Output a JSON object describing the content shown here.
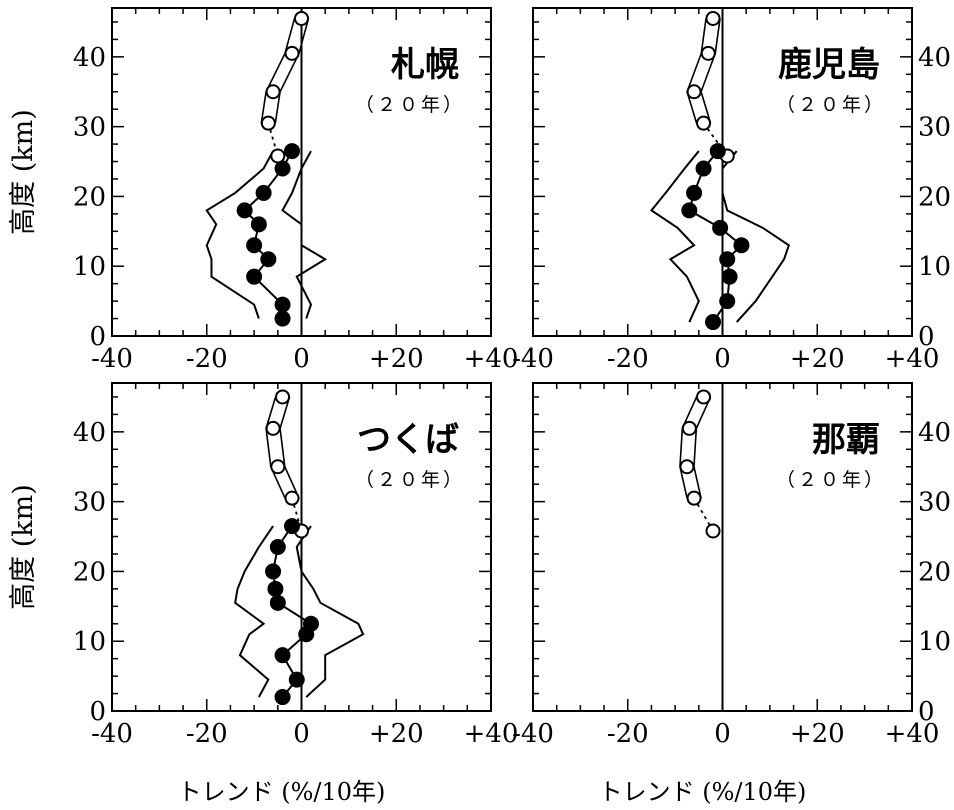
{
  "chart_data": [
    {
      "type": "line",
      "title": "札幌",
      "subtitle": "（２０年）",
      "xlabel": "トレンド (%/10年)",
      "ylabel": "高度 (km)",
      "xlim": [
        -40,
        40
      ],
      "ylim": [
        0,
        47
      ],
      "x_ticks": [
        "-40",
        "-20",
        "0",
        "+20",
        "+40"
      ],
      "y_ticks": [
        "0",
        "10",
        "20",
        "30",
        "40"
      ],
      "series": [
        {
          "marker": "open-circle",
          "x": [
            0,
            -2,
            -6,
            -7,
            -5
          ],
          "y": [
            45.5,
            40.5,
            35,
            30.5,
            25.8
          ]
        },
        {
          "marker": "filled-circle",
          "x": [
            -2,
            -4,
            -8,
            -12,
            -9,
            -10,
            -7,
            -10,
            -4,
            -4
          ],
          "y": [
            26.5,
            24,
            20.5,
            18,
            16,
            13,
            11,
            8.5,
            4.5,
            2.5
          ]
        }
      ]
    },
    {
      "type": "line",
      "title": "鹿児島",
      "subtitle": "（２０年）",
      "xlabel": "トレンド (%/10年)",
      "ylabel": "",
      "xlim": [
        -40,
        40
      ],
      "ylim": [
        0,
        47
      ],
      "x_ticks": [
        "-40",
        "-20",
        "0",
        "+20",
        "+40"
      ],
      "y_ticks": [
        "0",
        "10",
        "20",
        "30",
        "40"
      ],
      "series": [
        {
          "marker": "open-circle",
          "x": [
            -2,
            -3,
            -6,
            -4,
            1
          ],
          "y": [
            45.5,
            40.5,
            35,
            30.5,
            25.8
          ]
        },
        {
          "marker": "filled-circle",
          "x": [
            -1,
            -4,
            -6,
            -7,
            -0.5,
            4,
            1,
            1.5,
            1,
            -2
          ],
          "y": [
            26.5,
            24,
            20.5,
            18,
            15.5,
            13,
            11,
            8.5,
            5,
            2
          ]
        }
      ]
    },
    {
      "type": "line",
      "title": "つくば",
      "subtitle": "（２０年）",
      "xlabel": "トレンド (%/10年)",
      "ylabel": "高度 (km)",
      "xlim": [
        -40,
        40
      ],
      "ylim": [
        0,
        47
      ],
      "x_ticks": [
        "-40",
        "-20",
        "0",
        "+20",
        "+40"
      ],
      "y_ticks": [
        "0",
        "10",
        "20",
        "30",
        "40"
      ],
      "series": [
        {
          "marker": "open-circle",
          "x": [
            -4,
            -6,
            -5,
            -2,
            0
          ],
          "y": [
            45,
            40.5,
            35,
            30.5,
            25.8
          ]
        },
        {
          "marker": "filled-circle",
          "x": [
            -2,
            -5,
            -6,
            -5.5,
            -5,
            2,
            1,
            -4,
            -1,
            -4
          ],
          "y": [
            26.5,
            23.5,
            20,
            17.5,
            15.5,
            12.5,
            11,
            8,
            4.5,
            2
          ]
        }
      ]
    },
    {
      "type": "line",
      "title": "那覇",
      "subtitle": "（２０年）",
      "xlabel": "トレンド (%/10年)",
      "ylabel": "",
      "xlim": [
        -40,
        40
      ],
      "ylim": [
        0,
        47
      ],
      "x_ticks": [
        "-40",
        "-20",
        "0",
        "+20",
        "+40"
      ],
      "y_ticks": [
        "0",
        "10",
        "20",
        "30",
        "40"
      ],
      "series": [
        {
          "marker": "open-circle",
          "x": [
            -4,
            -7,
            -7.5,
            -6,
            -2
          ],
          "y": [
            45,
            40.5,
            35,
            30.5,
            25.8
          ]
        }
      ]
    }
  ]
}
